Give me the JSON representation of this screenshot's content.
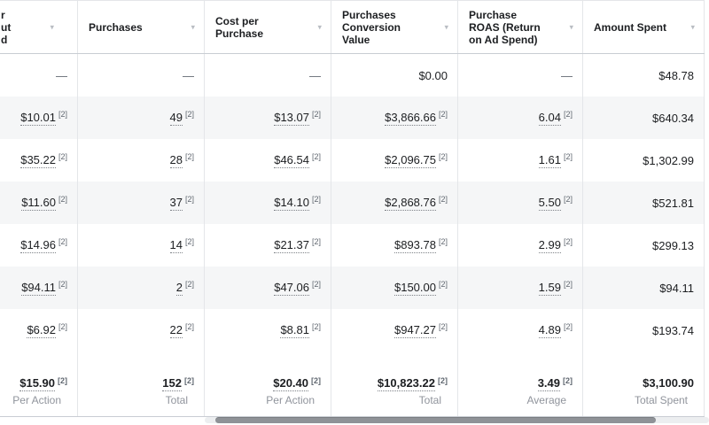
{
  "colors": {
    "row_alt_bg": "#f5f6f7",
    "grid_border": "#e4e6e9",
    "strong_border": "#c9cdd3",
    "text_primary": "#1c1e21",
    "text_secondary": "#90949c",
    "note_color": "#606770",
    "chevron": "#b9bdc3",
    "scroll_thumb": "#8f9297",
    "scroll_track": "#eceef0",
    "page_bg": "#ffffff"
  },
  "table": {
    "sort_icon": "▾",
    "footnote_marker": "[2]",
    "columns": [
      {
        "key": "truncated-leading-metric",
        "lines": [
          "r",
          "ut",
          "d"
        ],
        "truncated": true
      },
      {
        "key": "purchases",
        "lines": [
          "Purchases"
        ]
      },
      {
        "key": "cost-per-purchase",
        "lines": [
          "Cost per",
          "Purchase"
        ]
      },
      {
        "key": "purchases-conversion-value",
        "lines": [
          "Purchases",
          "Conversion",
          "Value"
        ]
      },
      {
        "key": "purchase-roas",
        "lines": [
          "Purchase",
          "ROAS (Return",
          "on Ad Spend)"
        ]
      },
      {
        "key": "amount-spent",
        "lines": [
          "Amount Spent"
        ]
      }
    ],
    "rows": [
      {
        "cells": [
          {
            "value": "—"
          },
          {
            "value": "—"
          },
          {
            "value": "—"
          },
          {
            "value": "$0.00"
          },
          {
            "value": "—"
          },
          {
            "value": "$48.78"
          }
        ]
      },
      {
        "cells": [
          {
            "value": "$10.01",
            "noted": true
          },
          {
            "value": "49",
            "noted": true
          },
          {
            "value": "$13.07",
            "noted": true
          },
          {
            "value": "$3,866.66",
            "noted": true
          },
          {
            "value": "6.04",
            "noted": true
          },
          {
            "value": "$640.34"
          }
        ]
      },
      {
        "cells": [
          {
            "value": "$35.22",
            "noted": true
          },
          {
            "value": "28",
            "noted": true
          },
          {
            "value": "$46.54",
            "noted": true
          },
          {
            "value": "$2,096.75",
            "noted": true
          },
          {
            "value": "1.61",
            "noted": true
          },
          {
            "value": "$1,302.99"
          }
        ]
      },
      {
        "cells": [
          {
            "value": "$11.60",
            "noted": true
          },
          {
            "value": "37",
            "noted": true
          },
          {
            "value": "$14.10",
            "noted": true
          },
          {
            "value": "$2,868.76",
            "noted": true
          },
          {
            "value": "5.50",
            "noted": true
          },
          {
            "value": "$521.81"
          }
        ]
      },
      {
        "cells": [
          {
            "value": "$14.96",
            "noted": true
          },
          {
            "value": "14",
            "noted": true
          },
          {
            "value": "$21.37",
            "noted": true
          },
          {
            "value": "$893.78",
            "noted": true
          },
          {
            "value": "2.99",
            "noted": true
          },
          {
            "value": "$299.13"
          }
        ]
      },
      {
        "cells": [
          {
            "value": "$94.11",
            "noted": true
          },
          {
            "value": "2",
            "noted": true
          },
          {
            "value": "$47.06",
            "noted": true
          },
          {
            "value": "$150.00",
            "noted": true
          },
          {
            "value": "1.59",
            "noted": true
          },
          {
            "value": "$94.11"
          }
        ]
      },
      {
        "cells": [
          {
            "value": "$6.92",
            "noted": true
          },
          {
            "value": "22",
            "noted": true
          },
          {
            "value": "$8.81",
            "noted": true
          },
          {
            "value": "$947.27",
            "noted": true
          },
          {
            "value": "4.89",
            "noted": true
          },
          {
            "value": "$193.74"
          }
        ]
      }
    ],
    "totals": {
      "cells": [
        {
          "value": "$15.90",
          "noted": true,
          "label": "Per Action"
        },
        {
          "value": "152",
          "noted": true,
          "label": "Total"
        },
        {
          "value": "$20.40",
          "noted": true,
          "label": "Per Action"
        },
        {
          "value": "$10,823.22",
          "noted": true,
          "label": "Total"
        },
        {
          "value": "3.49",
          "noted": true,
          "label": "Average"
        },
        {
          "value": "$3,100.90",
          "label": "Total Spent"
        }
      ]
    }
  }
}
